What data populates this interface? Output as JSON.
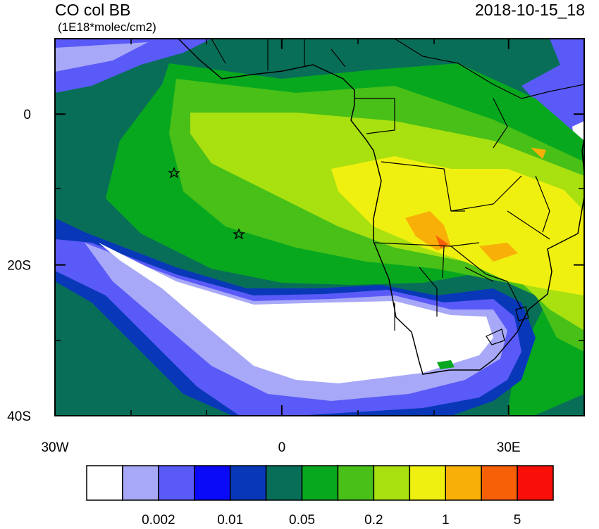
{
  "title": "CO col BB",
  "subtitle": "(1E18*molec/cm2)",
  "timestamp": "2018-10-15_18",
  "map": {
    "lonlim": [
      -30,
      40
    ],
    "latlim": [
      10,
      -40
    ],
    "yticks": [
      {
        "value": 0,
        "label": "0"
      },
      {
        "value": -20,
        "label": "20S"
      },
      {
        "value": -40,
        "label": "40S"
      }
    ],
    "xticks": [
      {
        "value": -30,
        "label": "30W"
      },
      {
        "value": 0,
        "label": "0"
      },
      {
        "value": 30,
        "label": "30E"
      }
    ]
  },
  "colorbar": {
    "colors": [
      "#ffffff",
      "#a8a8f8",
      "#5a5af8",
      "#0a0af8",
      "#0838b8",
      "#086e58",
      "#08a81e",
      "#48c018",
      "#a8e010",
      "#f0f010",
      "#f8b008",
      "#f86008",
      "#f81008"
    ],
    "labels": [
      "0.002",
      "0.01",
      "0.05",
      "0.2",
      "1",
      "5"
    ]
  }
}
